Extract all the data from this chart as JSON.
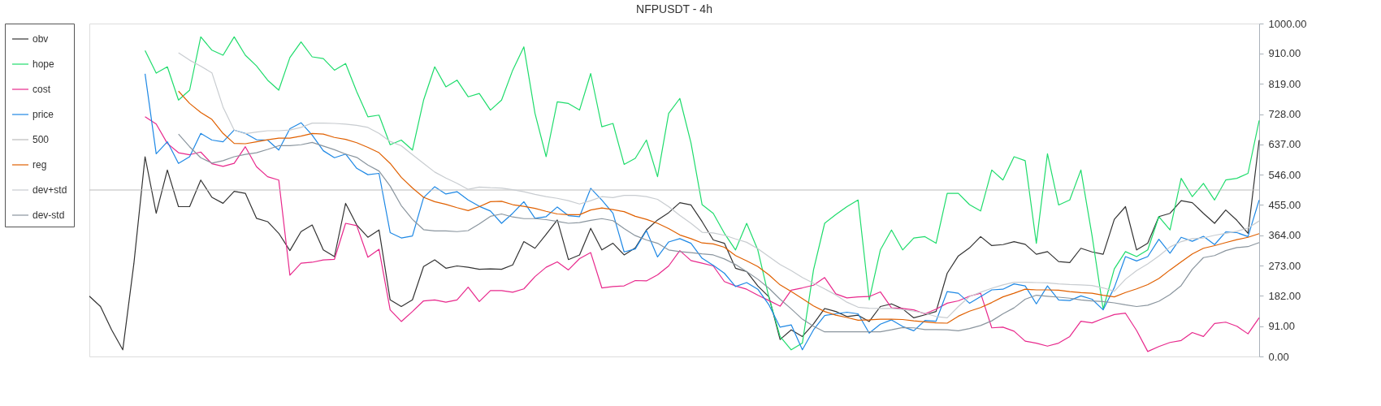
{
  "chart_data": {
    "type": "line",
    "title": "NFPUSDT - 4h",
    "categories": [
      null,
      null,
      null,
      null,
      null,
      null,
      null,
      null,
      null,
      null,
      null,
      null,
      null,
      null,
      null,
      null,
      null,
      null,
      null,
      null,
      null,
      null,
      null,
      null,
      null,
      null,
      null,
      null,
      null,
      null,
      null,
      null,
      null,
      null,
      null,
      null,
      null,
      null,
      null,
      null,
      null,
      null,
      null,
      null,
      null,
      null,
      null,
      null,
      null,
      null,
      null,
      null,
      null,
      null,
      null,
      null,
      null,
      null,
      null,
      null,
      null,
      null,
      null,
      null,
      null,
      null,
      null,
      null,
      null,
      null,
      null,
      null,
      null,
      null,
      null,
      null,
      null,
      null,
      null,
      null,
      null,
      null,
      null,
      null,
      null,
      null,
      null,
      null,
      null,
      null,
      null,
      null,
      null,
      null,
      null,
      null,
      null,
      null,
      null,
      null,
      null,
      null,
      null,
      null,
      null,
      null
    ],
    "ylim": [
      0,
      1000
    ],
    "yticks": [
      {
        "value": 0,
        "label": "0.00"
      },
      {
        "value": 91,
        "label": "91.00"
      },
      {
        "value": 182,
        "label": "182.00"
      },
      {
        "value": 273,
        "label": "273.00"
      },
      {
        "value": 364,
        "label": "364.00"
      },
      {
        "value": 455,
        "label": "455.00"
      },
      {
        "value": 546,
        "label": "546.00"
      },
      {
        "value": 637,
        "label": "637.00"
      },
      {
        "value": 728,
        "label": "728.00"
      },
      {
        "value": 819,
        "label": "819.00"
      },
      {
        "value": 910,
        "label": "910.00"
      },
      {
        "value": 1000,
        "label": "1000.00"
      }
    ],
    "tick_labels": "y",
    "grid": false,
    "legend": "top left",
    "marker": "none",
    "line_style": "solid",
    "series": [
      {
        "name": "obv",
        "color": "#333333",
        "values": [
          181,
          150,
          80,
          20,
          280,
          600,
          430,
          560,
          450,
          450,
          530,
          478,
          460,
          496,
          490,
          415,
          405,
          370,
          318,
          375,
          395,
          320,
          300,
          460,
          395,
          358,
          380,
          170,
          150,
          170,
          270,
          290,
          265,
          272,
          268,
          262,
          263,
          262,
          275,
          345,
          325,
          367,
          410,
          291,
          305,
          385,
          320,
          340,
          305,
          326,
          380,
          410,
          432,
          462,
          455,
          405,
          350,
          340,
          265,
          255,
          212,
          179,
          51,
          80,
          60,
          98,
          144,
          135,
          120,
          124,
          105,
          150,
          158,
          143,
          116,
          125,
          135,
          250,
          302,
          326,
          360,
          333,
          336,
          345,
          337,
          307,
          315,
          285,
          282,
          325,
          314,
          307,
          412,
          450,
          320,
          340,
          420,
          430,
          468,
          462,
          430,
          400,
          440,
          409,
          370,
          650
        ]
      },
      {
        "name": "hope",
        "color": "#1fdc6c",
        "values": [
          null,
          null,
          null,
          null,
          null,
          919,
          851,
          870,
          770,
          800,
          960,
          920,
          905,
          960,
          905,
          873,
          830,
          800,
          898,
          945,
          900,
          895,
          860,
          880,
          795,
          720,
          725,
          636,
          650,
          620,
          770,
          870,
          810,
          830,
          780,
          790,
          740,
          770,
          860,
          930,
          730,
          600,
          765,
          760,
          740,
          850,
          690,
          700,
          577,
          595,
          650,
          540,
          730,
          775,
          642,
          456,
          430,
          370,
          320,
          400,
          320,
          177,
          60,
          20,
          40,
          260,
          400,
          426,
          450,
          470,
          170,
          320,
          380,
          320,
          356,
          360,
          340,
          490,
          490,
          456,
          437,
          560,
          530,
          600,
          588,
          340,
          609,
          455,
          470,
          560,
          363,
          142,
          263,
          315,
          300,
          320,
          420,
          380,
          535,
          480,
          520,
          470,
          530,
          535,
          550,
          709
        ]
      },
      {
        "name": "cost",
        "color": "#e8288c",
        "values": [
          null,
          null,
          null,
          null,
          null,
          720,
          698,
          640,
          612,
          606,
          614,
          579,
          571,
          580,
          630,
          570,
          540,
          530,
          244,
          280,
          283,
          290,
          292,
          400,
          393,
          298,
          322,
          140,
          105,
          135,
          167,
          170,
          163,
          170,
          208,
          165,
          198,
          198,
          193,
          203,
          240,
          268,
          284,
          260,
          294,
          312,
          206,
          210,
          212,
          228,
          227,
          245,
          272,
          318,
          288,
          280,
          272,
          225,
          212,
          202,
          184,
          168,
          151,
          199,
          206,
          214,
          237,
          188,
          176,
          179,
          180,
          194,
          146,
          144,
          140,
          128,
          142,
          160,
          167,
          181,
          190,
          86,
          88,
          76,
          46,
          40,
          31,
          40,
          60,
          106,
          101,
          114,
          126,
          130,
          78,
          15,
          30,
          42,
          48,
          72,
          60,
          99,
          103,
          91,
          68,
          116
        ]
      },
      {
        "name": "price",
        "color": "#1e88e5",
        "values": [
          null,
          null,
          null,
          null,
          null,
          849,
          609,
          645,
          580,
          600,
          670,
          650,
          645,
          680,
          670,
          651,
          650,
          620,
          684,
          702,
          665,
          618,
          597,
          608,
          565,
          546,
          550,
          372,
          356,
          362,
          477,
          510,
          488,
          495,
          470,
          451,
          437,
          400,
          430,
          465,
          415,
          420,
          449,
          423,
          420,
          505,
          470,
          430,
          314,
          323,
          378,
          299,
          344,
          354,
          340,
          295,
          274,
          250,
          210,
          222,
          202,
          155,
          88,
          95,
          20,
          80,
          123,
          128,
          133,
          128,
          70,
          97,
          110,
          90,
          77,
          108,
          106,
          195,
          190,
          160,
          180,
          200,
          202,
          218,
          212,
          158,
          212,
          170,
          168,
          182,
          172,
          140,
          207,
          300,
          287,
          300,
          352,
          310,
          358,
          346,
          361,
          336,
          374,
          372,
          360,
          470
        ]
      },
      {
        "name": "500",
        "color": "#bbbbbb",
        "values": [
          500,
          500,
          500,
          500,
          500,
          500,
          500,
          500,
          500,
          500,
          500,
          500,
          500,
          500,
          500,
          500,
          500,
          500,
          500,
          500,
          500,
          500,
          500,
          500,
          500,
          500,
          500,
          500,
          500,
          500,
          500,
          500,
          500,
          500,
          500,
          500,
          500,
          500,
          500,
          500,
          500,
          500,
          500,
          500,
          500,
          500,
          500,
          500,
          500,
          500,
          500,
          500,
          500,
          500,
          500,
          500,
          500,
          500,
          500,
          500,
          500,
          500,
          500,
          500,
          500,
          500,
          500,
          500,
          500,
          500,
          500,
          500,
          500,
          500,
          500,
          500,
          500,
          500,
          500,
          500,
          500,
          500,
          500,
          500,
          500,
          500,
          500,
          500,
          500,
          500,
          500,
          500,
          500,
          500,
          500,
          500,
          500,
          500,
          500,
          500,
          500,
          500,
          500,
          500,
          500,
          500
        ]
      },
      {
        "name": "reg",
        "color": "#e06000",
        "values": [
          null,
          null,
          null,
          null,
          null,
          null,
          null,
          null,
          797,
          760,
          733,
          712,
          670,
          640,
          639,
          645,
          651,
          656,
          656,
          662,
          670,
          668,
          658,
          652,
          642,
          628,
          612,
          580,
          538,
          506,
          478,
          465,
          457,
          447,
          438,
          450,
          465,
          466,
          456,
          451,
          445,
          436,
          428,
          426,
          426,
          440,
          446,
          441,
          435,
          421,
          412,
          400,
          384,
          365,
          354,
          341,
          338,
          328,
          303,
          287,
          270,
          245,
          215,
          195,
          174,
          152,
          135,
          124,
          117,
          109,
          110,
          112,
          112,
          111,
          107,
          104,
          101,
          100,
          121,
          136,
          147,
          162,
          179,
          190,
          202,
          200,
          200,
          199,
          195,
          192,
          190,
          184,
          179,
          192,
          203,
          216,
          234,
          260,
          284,
          308,
          325,
          333,
          342,
          351,
          358,
          369
        ]
      },
      {
        "name": "dev+std",
        "color": "#c8ccd0",
        "values": [
          null,
          null,
          null,
          null,
          null,
          null,
          null,
          null,
          912,
          890,
          872,
          852,
          749,
          680,
          669,
          674,
          678,
          678,
          680,
          688,
          701,
          701,
          700,
          698,
          694,
          688,
          670,
          646,
          633,
          606,
          580,
          554,
          536,
          520,
          502,
          509,
          507,
          506,
          501,
          495,
          487,
          480,
          475,
          468,
          458,
          468,
          480,
          477,
          484,
          484,
          480,
          472,
          450,
          424,
          400,
          373,
          371,
          364,
          353,
          343,
          324,
          300,
          276,
          258,
          237,
          220,
          203,
          185,
          163,
          148,
          145,
          144,
          144,
          141,
          136,
          130,
          120,
          116,
          150,
          180,
          193,
          205,
          215,
          223,
          223,
          222,
          221,
          218,
          216,
          215,
          213,
          206,
          196,
          232,
          258,
          278,
          302,
          329,
          345,
          354,
          356,
          364,
          370,
          376,
          386,
          407
        ]
      },
      {
        "name": "dev-std",
        "color": "#8a959e",
        "values": [
          null,
          null,
          null,
          null,
          null,
          null,
          null,
          null,
          668,
          630,
          597,
          581,
          588,
          600,
          607,
          612,
          622,
          633,
          633,
          636,
          643,
          632,
          621,
          608,
          598,
          575,
          557,
          512,
          453,
          412,
          381,
          377,
          377,
          375,
          378,
          398,
          421,
          428,
          419,
          414,
          414,
          411,
          406,
          400,
          402,
          409,
          414,
          408,
          384,
          363,
          350,
          340,
          320,
          315,
          312,
          308,
          305,
          293,
          276,
          255,
          232,
          205,
          172,
          143,
          112,
          91,
          74,
          74,
          74,
          74,
          74,
          74,
          80,
          87,
          86,
          81,
          81,
          80,
          77,
          84,
          93,
          107,
          128,
          146,
          172,
          184,
          181,
          178,
          175,
          170,
          167,
          165,
          161,
          155,
          150,
          154,
          166,
          186,
          213,
          262,
          297,
          303,
          318,
          327,
          330,
          342
        ]
      }
    ]
  }
}
